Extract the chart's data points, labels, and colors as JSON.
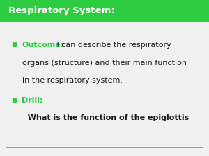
{
  "title": "Respiratory System:",
  "title_bg_color": "#2ecc40",
  "title_text_color": "#ffffff",
  "body_bg_color": "#f0f0f0",
  "green_color": "#2ecc40",
  "dark_text_color": "#1a1a1a",
  "bullet_color": "#2ecc40",
  "outcome_label": "Outcome:",
  "outcome_rest": " I can describe the respiratory\norgans (structure) and their main function\nin the respiratory system.",
  "drill_label": "Drill:",
  "drill_text": "  What is the function of the epiglottis",
  "bottom_line_color": "#2ecc40",
  "title_fontsize": 9.5,
  "body_fontsize": 8.0,
  "bullet_fontsize": 6.5
}
